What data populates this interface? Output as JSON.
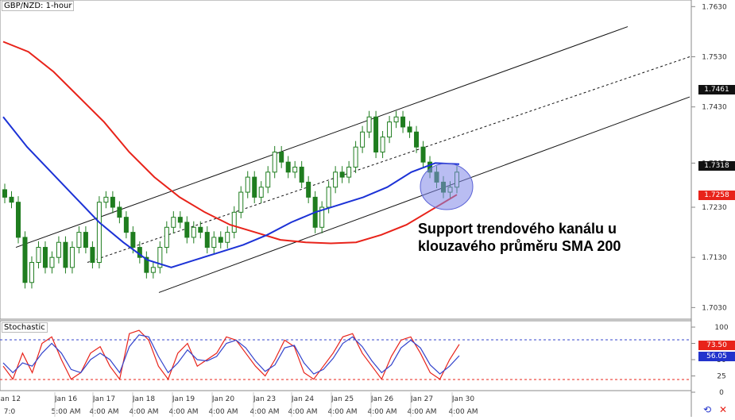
{
  "header": {
    "pair_label": "GBP/NZD: 1-hour",
    "stoch_label": "Stochastic"
  },
  "annotation": {
    "line1": "Support trendového kanálu u",
    "line2": "klouzavého průměru SMA 200"
  },
  "price_tags": {
    "tag_1": "1.7461",
    "tag_2": "1.7318",
    "tag_3": "1.7258",
    "stoch_k": "73.50",
    "stoch_d": "56.05"
  },
  "colors": {
    "sma_red": "#e8231a",
    "sma_blue": "#1c32d6",
    "candle": "#1f7d1f",
    "stoch_k": "#e8231a",
    "stoch_d": "#3344cc",
    "circle_fill": "#7f86e8"
  },
  "icons": {
    "sync": "sync-icon",
    "close": "close-icon"
  },
  "chart_data": [
    {
      "type": "candlestick",
      "title": "GBP/NZD: 1-hour",
      "y_ticks": [
        "1.7630",
        "1.7530",
        "1.7430",
        "1.7318",
        "1.7230",
        "1.7130",
        "1.7030"
      ],
      "x_ticks_top": [
        "Jan 12",
        "Jan 16",
        "Jan 17",
        "Jan 18",
        "Jan 19",
        "Jan 20",
        "Jan 23",
        "Jan 24",
        "Jan 25",
        "Jan 26",
        "Jan 27",
        "Jan 30"
      ],
      "x_ticks_bottom": [
        "7:0",
        "5:00 AM",
        "4:00 AM",
        "4:00 AM",
        "4:00 AM",
        "4:00 AM",
        "4:00 AM",
        "4:00 AM",
        "4:00 AM",
        "4:00 AM",
        "4:00 AM",
        "4:00 AM"
      ],
      "ylim": [
        1.701,
        1.764
      ],
      "series": [
        {
          "name": "Price",
          "values": [
            1.725,
            1.724,
            1.717,
            1.708,
            1.712,
            1.715,
            1.711,
            1.713,
            1.716,
            1.711,
            1.715,
            1.718,
            1.715,
            1.712,
            1.724,
            1.725,
            1.723,
            1.721,
            1.718,
            1.715,
            1.713,
            1.71,
            1.711,
            1.715,
            1.719,
            1.721,
            1.72,
            1.717,
            1.719,
            1.718,
            1.715,
            1.717,
            1.716,
            1.718,
            1.722,
            1.726,
            1.729,
            1.725,
            1.727,
            1.73,
            1.734,
            1.732,
            1.73,
            1.731,
            1.728,
            1.725,
            1.719,
            1.723,
            1.727,
            1.73,
            1.729,
            1.731,
            1.735,
            1.738,
            1.741,
            1.734,
            1.737,
            1.74,
            1.741,
            1.739,
            1.738,
            1.735,
            1.732,
            1.73,
            1.728,
            1.726,
            1.727,
            1.73
          ]
        },
        {
          "name": "SMA 200",
          "values": [
            1.756,
            1.754,
            1.75,
            1.745,
            1.74,
            1.734,
            1.729,
            1.725,
            1.722,
            1.7195,
            1.718,
            1.7165,
            1.716,
            1.7158,
            1.716,
            1.7175,
            1.7195,
            1.7225,
            1.7255
          ]
        },
        {
          "name": "SMA 100",
          "values": [
            1.741,
            1.735,
            1.73,
            1.725,
            1.72,
            1.716,
            1.7125,
            1.711,
            1.7125,
            1.714,
            1.7155,
            1.7175,
            1.72,
            1.722,
            1.7235,
            1.725,
            1.727,
            1.73,
            1.7318,
            1.7316
          ]
        }
      ],
      "trend_channel": {
        "upper": [
          [
            1.715,
            1.759
          ]
        ],
        "middle": [
          [
            1.712,
            1.753
          ]
        ],
        "lower": [
          [
            1.706,
            1.745
          ]
        ]
      }
    },
    {
      "type": "line",
      "title": "Stochastic",
      "y_ticks": [
        "100",
        "75",
        "50",
        "25",
        "0"
      ],
      "ylim": [
        0,
        100
      ],
      "levels": [
        80,
        20
      ],
      "series": [
        {
          "name": "%K",
          "values": [
            40,
            20,
            60,
            30,
            75,
            85,
            50,
            20,
            30,
            60,
            70,
            40,
            20,
            90,
            95,
            80,
            40,
            20,
            60,
            75,
            40,
            50,
            60,
            85,
            80,
            60,
            40,
            25,
            50,
            80,
            70,
            30,
            20,
            40,
            60,
            85,
            90,
            60,
            40,
            20,
            55,
            80,
            85,
            60,
            30,
            20,
            50,
            73.5
          ]
        },
        {
          "name": "%D",
          "values": [
            45,
            30,
            45,
            40,
            60,
            75,
            60,
            35,
            30,
            50,
            60,
            50,
            30,
            70,
            88,
            85,
            55,
            30,
            45,
            65,
            50,
            48,
            55,
            75,
            80,
            68,
            48,
            32,
            42,
            68,
            72,
            45,
            28,
            35,
            52,
            75,
            85,
            70,
            48,
            30,
            42,
            68,
            80,
            68,
            42,
            28,
            40,
            56.05
          ]
        }
      ]
    }
  ]
}
